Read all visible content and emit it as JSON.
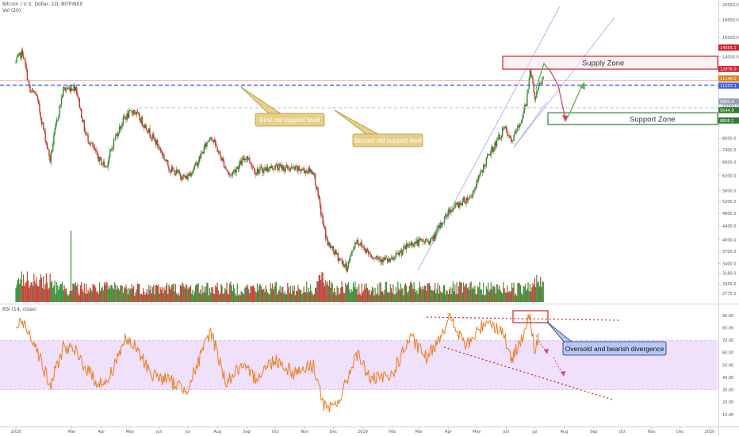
{
  "header": {
    "symbol_title": "Bitcoin / U.S. Dollar, 1D, BITFINEX",
    "volume_label": "Vol (20)",
    "rsi_label": "RSI (14, close)"
  },
  "colors": {
    "up": "#2e8b2e",
    "down": "#c0392b",
    "rsi_line": "#f07b1a",
    "rsi_band": "#efe0fb",
    "level_dashed": "#3d5fd6",
    "supply_border": "#d0202a",
    "support_border": "#2e7d32",
    "trendline": "#9b8ae8",
    "callout_fill": "#e6cf8a",
    "callout_border": "#b5953a",
    "divergence_fill": "#b8c8f5"
  },
  "chart_data": [
    {
      "type": "candlestick",
      "title": "Bitcoin / U.S. Dollar, 1D, BITFINEX",
      "x_tick_labels": [
        "2018",
        "Mar",
        "Apr",
        "May",
        "Jun",
        "Jul",
        "Aug",
        "Sep",
        "Oct",
        "Nov",
        "Dec",
        "2019",
        "Feb",
        "Mar",
        "Apr",
        "May",
        "Jun",
        "Jul",
        "Aug",
        "Sep",
        "Oct",
        "Nov",
        "Dec",
        "2020"
      ],
      "y_scale": "log",
      "ylim": [
        2500,
        20000
      ],
      "y_tick_labels": [
        "20000.0",
        "18000.0",
        "16000.0",
        "14000.0",
        "13000.0",
        "12000.0",
        "10000.0",
        "9000.0",
        "8000.0",
        "7400.0",
        "6800.0",
        "6200.0",
        "5600.0",
        "5200.0",
        "4800.0",
        "4400.0",
        "4000.0",
        "3700.0",
        "3400.0",
        "3180.0",
        "2955.0",
        "2775.0"
      ],
      "price_markers": [
        {
          "label": "14055.1",
          "color": "#d0202a"
        },
        {
          "label": "12876.0",
          "color": "#d0202a"
        },
        {
          "label": "11148.0",
          "color": "#e07a1a"
        },
        {
          "label": "11537.1",
          "color": "#3d5fd6"
        },
        {
          "label": "9881.9",
          "color": "#9aa3b5"
        },
        {
          "label": "9544.9",
          "color": "#2e7d32"
        },
        {
          "label": "8806.1",
          "color": "#2e7d32"
        }
      ],
      "series": [
        {
          "kind": "close",
          "points": [
            [
              "2018-01-01",
              13500
            ],
            [
              "2018-01-08",
              14500
            ],
            [
              "2018-01-16",
              11000
            ],
            [
              "2018-01-22",
              10900
            ],
            [
              "2018-02-06",
              6900
            ],
            [
              "2018-02-12",
              8700
            ],
            [
              "2018-02-20",
              11200
            ],
            [
              "2018-03-05",
              11400
            ],
            [
              "2018-03-15",
              8300
            ],
            [
              "2018-03-30",
              6900
            ],
            [
              "2018-04-06",
              6600
            ],
            [
              "2018-04-15",
              8000
            ],
            [
              "2018-04-25",
              9200
            ],
            [
              "2018-05-05",
              9700
            ],
            [
              "2018-05-20",
              8500
            ],
            [
              "2018-06-01",
              7500
            ],
            [
              "2018-06-12",
              6500
            ],
            [
              "2018-06-29",
              6100
            ],
            [
              "2018-07-10",
              6700
            ],
            [
              "2018-07-25",
              8200
            ],
            [
              "2018-08-05",
              7000
            ],
            [
              "2018-08-14",
              6200
            ],
            [
              "2018-09-01",
              7100
            ],
            [
              "2018-09-10",
              6400
            ],
            [
              "2018-10-01",
              6600
            ],
            [
              "2018-10-20",
              6500
            ],
            [
              "2018-11-10",
              6400
            ],
            [
              "2018-11-20",
              4500
            ],
            [
              "2018-11-25",
              3900
            ],
            [
              "2018-12-15",
              3300
            ],
            [
              "2018-12-25",
              4000
            ],
            [
              "2019-01-10",
              3600
            ],
            [
              "2019-01-30",
              3450
            ],
            [
              "2019-02-20",
              3900
            ],
            [
              "2019-03-15",
              4000
            ],
            [
              "2019-04-02",
              4900
            ],
            [
              "2019-04-25",
              5400
            ],
            [
              "2019-05-12",
              7000
            ],
            [
              "2019-05-30",
              8600
            ],
            [
              "2019-06-06",
              7800
            ],
            [
              "2019-06-15",
              8800
            ],
            [
              "2019-06-22",
              10200
            ],
            [
              "2019-06-26",
              13000
            ],
            [
              "2019-07-01",
              10600
            ],
            [
              "2019-07-10",
              12200
            ]
          ]
        },
        {
          "kind": "volume",
          "name": "Vol (20)"
        }
      ],
      "horizontal_levels": [
        {
          "price": 11537.1,
          "style": "dashed",
          "label": "First old support level"
        },
        {
          "price": 9881.9,
          "style": "dashed",
          "label": "Second old support level"
        }
      ],
      "zones": [
        {
          "label": "Supply Zone",
          "low": 12876.0,
          "high": 14055.1
        },
        {
          "label": "Support Zone",
          "low": 8806.1,
          "high": 9544.9
        }
      ],
      "annotations": [
        "First old support level",
        "Second old support level",
        "Supply Zone",
        "Support Zone"
      ]
    },
    {
      "type": "line",
      "title": "RSI (14, close)",
      "ylim": [
        5,
        95
      ],
      "y_tick_labels": [
        "90.00",
        "80.00",
        "70.00",
        "60.00",
        "50.00",
        "40.00",
        "30.00",
        "20.00",
        "10.00"
      ],
      "band": [
        30,
        70
      ],
      "series": [
        {
          "name": "RSI (14, close)",
          "points": [
            [
              "2018-01-01",
              80
            ],
            [
              "2018-01-08",
              85
            ],
            [
              "2018-01-20",
              70
            ],
            [
              "2018-02-06",
              32
            ],
            [
              "2018-02-20",
              65
            ],
            [
              "2018-03-05",
              60
            ],
            [
              "2018-03-25",
              38
            ],
            [
              "2018-04-06",
              34
            ],
            [
              "2018-04-25",
              70
            ],
            [
              "2018-05-05",
              66
            ],
            [
              "2018-05-25",
              42
            ],
            [
              "2018-06-10",
              38
            ],
            [
              "2018-06-29",
              30
            ],
            [
              "2018-07-10",
              48
            ],
            [
              "2018-07-25",
              78
            ],
            [
              "2018-08-10",
              36
            ],
            [
              "2018-08-25",
              48
            ],
            [
              "2018-09-10",
              40
            ],
            [
              "2018-10-01",
              55
            ],
            [
              "2018-10-20",
              44
            ],
            [
              "2018-11-10",
              50
            ],
            [
              "2018-11-20",
              20
            ],
            [
              "2018-11-25",
              12
            ],
            [
              "2018-12-10",
              25
            ],
            [
              "2018-12-25",
              60
            ],
            [
              "2019-01-10",
              38
            ],
            [
              "2019-01-30",
              40
            ],
            [
              "2019-02-20",
              72
            ],
            [
              "2019-03-10",
              55
            ],
            [
              "2019-04-02",
              88
            ],
            [
              "2019-04-20",
              65
            ],
            [
              "2019-05-12",
              87
            ],
            [
              "2019-05-30",
              75
            ],
            [
              "2019-06-06",
              52
            ],
            [
              "2019-06-20",
              78
            ],
            [
              "2019-06-26",
              89
            ],
            [
              "2019-07-01",
              60
            ],
            [
              "2019-07-05",
              70
            ]
          ]
        }
      ],
      "annotations": [
        "Oversold and bearish divergence"
      ]
    }
  ]
}
